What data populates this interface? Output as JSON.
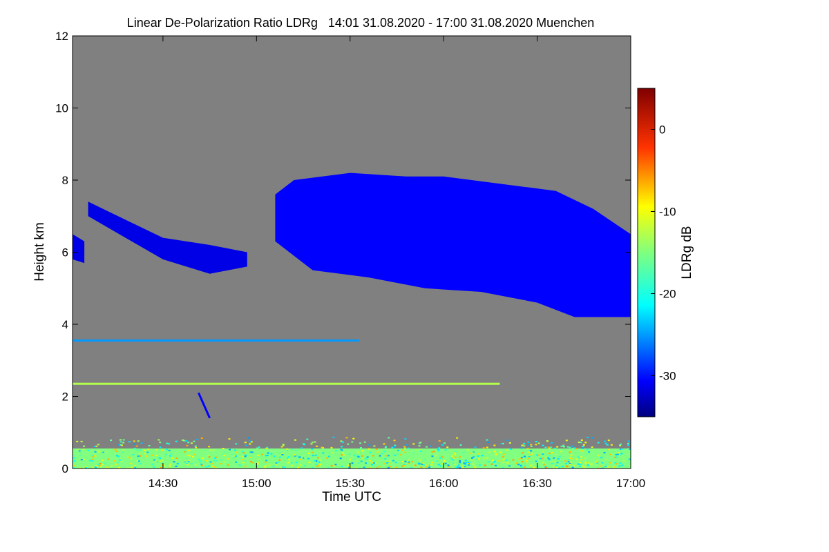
{
  "chart_data": {
    "type": "heatmap",
    "title": "Linear De-Polarization Ratio LDRg   14:01 31.08.2020 - 17:00 31.08.2020 Muenchen",
    "xlabel": "Time UTC",
    "ylabel": "Height km",
    "x_range_hours": [
      14.0167,
      17.0
    ],
    "y_range_km": [
      0,
      12
    ],
    "x_ticks": [
      {
        "value": 14.5,
        "label": "14:30"
      },
      {
        "value": 15.0,
        "label": "15:00"
      },
      {
        "value": 15.5,
        "label": "15:30"
      },
      {
        "value": 16.0,
        "label": "16:00"
      },
      {
        "value": 16.5,
        "label": "16:30"
      },
      {
        "value": 17.0,
        "label": "17:00"
      }
    ],
    "y_ticks": [
      {
        "value": 0,
        "label": "0"
      },
      {
        "value": 2,
        "label": "2"
      },
      {
        "value": 4,
        "label": "4"
      },
      {
        "value": 6,
        "label": "6"
      },
      {
        "value": 8,
        "label": "8"
      },
      {
        "value": 10,
        "label": "10"
      },
      {
        "value": 12,
        "label": "12"
      }
    ],
    "colorbar": {
      "label": "LDRg dB",
      "range_db": [
        -35,
        5
      ],
      "ticks": [
        {
          "value": 0,
          "label": "0"
        },
        {
          "value": -10,
          "label": "-10"
        },
        {
          "value": -20,
          "label": "-20"
        },
        {
          "value": -30,
          "label": "-30"
        }
      ]
    },
    "background_color": "#808080",
    "features": [
      {
        "name": "main-cirrus-cloud",
        "ldr_db": -30,
        "top_km": [
          [
            15.1,
            7.6
          ],
          [
            15.2,
            8.0
          ],
          [
            15.5,
            8.2
          ],
          [
            15.8,
            8.1
          ],
          [
            16.0,
            8.1
          ],
          [
            16.3,
            7.9
          ],
          [
            16.6,
            7.7
          ],
          [
            16.8,
            7.2
          ],
          [
            17.0,
            6.5
          ]
        ],
        "base_km": [
          [
            15.1,
            6.3
          ],
          [
            15.3,
            5.5
          ],
          [
            15.6,
            5.3
          ],
          [
            15.9,
            5.0
          ],
          [
            16.2,
            4.9
          ],
          [
            16.5,
            4.6
          ],
          [
            16.7,
            4.2
          ],
          [
            17.0,
            4.2
          ]
        ]
      },
      {
        "name": "thin-cloud-left-edge",
        "ldr_db": -31,
        "top_km": [
          [
            14.017,
            6.5
          ],
          [
            14.08,
            6.3
          ]
        ],
        "base_km": [
          [
            14.017,
            5.8
          ],
          [
            14.08,
            5.7
          ]
        ]
      },
      {
        "name": "sloping-cloud-streak",
        "ldr_db": -31,
        "top_km": [
          [
            14.1,
            7.4
          ],
          [
            14.3,
            6.9
          ],
          [
            14.5,
            6.4
          ],
          [
            14.75,
            6.2
          ],
          [
            14.95,
            6.0
          ]
        ],
        "base_km": [
          [
            14.1,
            7.0
          ],
          [
            14.3,
            6.4
          ],
          [
            14.5,
            5.8
          ],
          [
            14.75,
            5.4
          ],
          [
            14.95,
            5.6
          ]
        ]
      },
      {
        "name": "layer-3.5km",
        "ldr_db": -24,
        "height_km": 3.55,
        "x_span": [
          14.017,
          15.55
        ]
      },
      {
        "name": "layer-2.35km",
        "ldr_db": -13,
        "height_km": 2.35,
        "x_span": [
          14.017,
          16.3
        ]
      },
      {
        "name": "fall-streak",
        "ldr_db": -30,
        "from": [
          14.69,
          2.1
        ],
        "to": [
          14.75,
          1.4
        ]
      },
      {
        "name": "boundary-layer",
        "ldr_db": -15,
        "height_km": [
          0.0,
          0.9
        ],
        "x_span": [
          14.017,
          17.0
        ]
      }
    ]
  }
}
